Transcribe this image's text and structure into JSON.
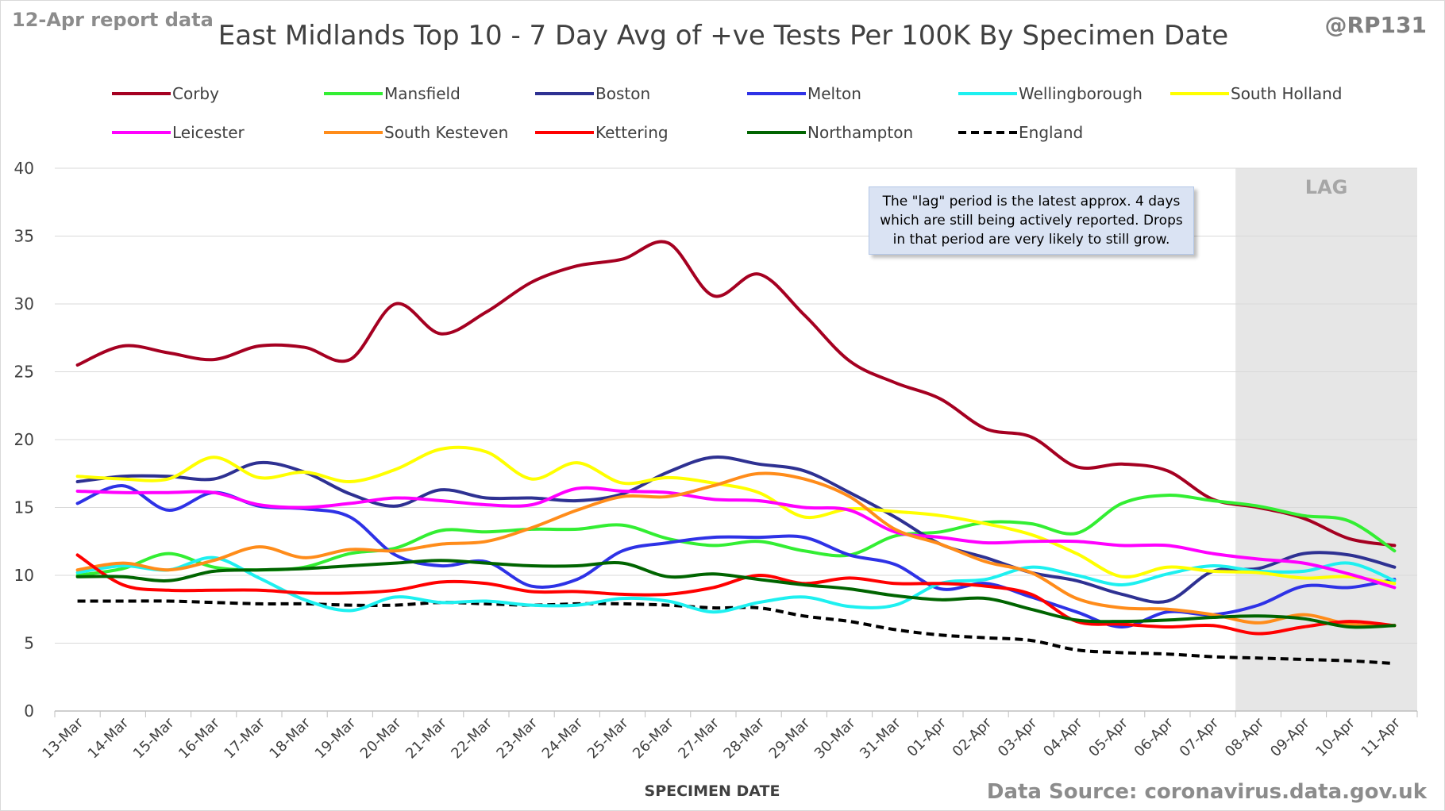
{
  "header": {
    "report_date": "12-Apr report data",
    "title": "East Midlands Top 10 - 7 Day Avg of +ve Tests Per 100K By Specimen Date",
    "handle": "@RP131"
  },
  "footer": {
    "source": "Data Source: coronavirus.data.gov.uk"
  },
  "annotation": {
    "note": "The \"lag\" period is the latest approx. 4 days which are still being actively reported. Drops in that period are very likely to still grow.",
    "lag_label": "LAG",
    "lag_start": "08-Apr",
    "lag_end": "11-Apr"
  },
  "chart_data": {
    "type": "line",
    "title": "East Midlands Top 10 - 7 Day Avg of +ve Tests Per 100K By Specimen Date",
    "xlabel": "SPECIMEN DATE",
    "ylabel": "",
    "ylim": [
      0,
      40
    ],
    "yticks": [
      0,
      5,
      10,
      15,
      20,
      25,
      30,
      35,
      40
    ],
    "grid": true,
    "legend_position": "top",
    "categories": [
      "13-Mar",
      "14-Mar",
      "15-Mar",
      "16-Mar",
      "17-Mar",
      "18-Mar",
      "19-Mar",
      "20-Mar",
      "21-Mar",
      "22-Mar",
      "23-Mar",
      "24-Mar",
      "25-Mar",
      "26-Mar",
      "27-Mar",
      "28-Mar",
      "29-Mar",
      "30-Mar",
      "31-Mar",
      "01-Apr",
      "02-Apr",
      "03-Apr",
      "04-Apr",
      "05-Apr",
      "06-Apr",
      "07-Apr",
      "08-Apr",
      "09-Apr",
      "10-Apr",
      "11-Apr"
    ],
    "series": [
      {
        "name": "Corby",
        "color": "#a50021",
        "dashed": false,
        "values": [
          25.5,
          26.9,
          26.4,
          25.9,
          26.9,
          26.8,
          25.9,
          30.0,
          27.8,
          29.4,
          31.6,
          32.8,
          33.3,
          34.5,
          30.6,
          32.2,
          29.2,
          25.8,
          24.2,
          23.0,
          20.8,
          20.2,
          18.0,
          18.2,
          17.7,
          15.6,
          15.0,
          14.2,
          12.7,
          12.2
        ]
      },
      {
        "name": "Mansfield",
        "color": "#33ee33",
        "dashed": false,
        "values": [
          10.0,
          10.5,
          11.6,
          10.6,
          10.4,
          10.6,
          11.6,
          12.0,
          13.3,
          13.2,
          13.4,
          13.4,
          13.7,
          12.7,
          12.2,
          12.5,
          11.8,
          11.5,
          12.9,
          13.2,
          13.9,
          13.8,
          13.1,
          15.3,
          15.9,
          15.5,
          15.1,
          14.4,
          14.0,
          11.8
        ]
      },
      {
        "name": "Boston",
        "color": "#2e3192",
        "dashed": false,
        "values": [
          16.9,
          17.3,
          17.3,
          17.1,
          18.3,
          17.6,
          16.0,
          15.1,
          16.3,
          15.7,
          15.7,
          15.5,
          16.0,
          17.6,
          18.7,
          18.2,
          17.7,
          16.1,
          14.3,
          12.3,
          11.3,
          10.2,
          9.6,
          8.6,
          8.1,
          10.3,
          10.5,
          11.6,
          11.5,
          10.6
        ]
      },
      {
        "name": "Melton",
        "color": "#2e32e6",
        "dashed": false,
        "values": [
          15.3,
          16.6,
          14.8,
          16.1,
          15.1,
          14.9,
          14.3,
          11.5,
          10.7,
          11.0,
          9.2,
          9.7,
          11.8,
          12.4,
          12.8,
          12.8,
          12.8,
          11.5,
          10.8,
          9.0,
          9.4,
          8.4,
          7.3,
          6.2,
          7.3,
          7.1,
          7.8,
          9.2,
          9.1,
          9.7
        ]
      },
      {
        "name": "Wellingborough",
        "color": "#1ef0f0",
        "dashed": false,
        "values": [
          10.2,
          10.7,
          10.4,
          11.3,
          9.8,
          8.2,
          7.4,
          8.4,
          8.0,
          8.1,
          7.8,
          7.8,
          8.3,
          8.1,
          7.3,
          8.0,
          8.4,
          7.7,
          7.8,
          9.4,
          9.7,
          10.6,
          10.0,
          9.3,
          10.1,
          10.7,
          10.3,
          10.3,
          10.9,
          9.6
        ]
      },
      {
        "name": "South Holland",
        "color": "#ffff00",
        "dashed": false,
        "values": [
          17.3,
          17.1,
          17.1,
          18.7,
          17.2,
          17.6,
          16.9,
          17.8,
          19.3,
          19.1,
          17.1,
          18.3,
          16.8,
          17.2,
          16.8,
          16.1,
          14.3,
          14.9,
          14.7,
          14.4,
          13.8,
          13.0,
          11.6,
          9.9,
          10.6,
          10.3,
          10.2,
          9.8,
          9.9,
          9.4
        ]
      },
      {
        "name": "Leicester",
        "color": "#ff00ff",
        "dashed": false,
        "values": [
          16.2,
          16.1,
          16.1,
          16.1,
          15.2,
          15.0,
          15.3,
          15.7,
          15.5,
          15.2,
          15.2,
          16.4,
          16.2,
          16.1,
          15.6,
          15.5,
          15.0,
          14.8,
          13.2,
          12.8,
          12.4,
          12.5,
          12.5,
          12.2,
          12.2,
          11.6,
          11.2,
          10.9,
          10.1,
          9.1
        ]
      },
      {
        "name": "South Kesteven",
        "color": "#ff8c1a",
        "dashed": false,
        "values": [
          10.4,
          10.9,
          10.4,
          11.1,
          12.1,
          11.3,
          11.9,
          11.8,
          12.3,
          12.5,
          13.5,
          14.8,
          15.8,
          15.8,
          16.6,
          17.5,
          17.1,
          15.8,
          13.4,
          12.3,
          11.0,
          10.2,
          8.3,
          7.6,
          7.5,
          7.1,
          6.5,
          7.1,
          6.4,
          6.3
        ]
      },
      {
        "name": "Kettering",
        "color": "#ff0000",
        "dashed": false,
        "values": [
          11.5,
          9.3,
          8.9,
          8.9,
          8.9,
          8.7,
          8.7,
          8.9,
          9.5,
          9.4,
          8.8,
          8.8,
          8.6,
          8.6,
          9.1,
          10.0,
          9.4,
          9.8,
          9.4,
          9.4,
          9.2,
          8.6,
          6.6,
          6.4,
          6.2,
          6.3,
          5.7,
          6.2,
          6.6,
          6.3
        ]
      },
      {
        "name": "Northampton",
        "color": "#006400",
        "dashed": false,
        "values": [
          9.9,
          9.9,
          9.6,
          10.3,
          10.4,
          10.5,
          10.7,
          10.9,
          11.1,
          10.9,
          10.7,
          10.7,
          10.9,
          9.9,
          10.1,
          9.7,
          9.3,
          9.0,
          8.5,
          8.2,
          8.3,
          7.5,
          6.7,
          6.6,
          6.7,
          6.9,
          7.0,
          6.8,
          6.2,
          6.3
        ]
      },
      {
        "name": "England",
        "color": "#000000",
        "dashed": true,
        "values": [
          8.1,
          8.1,
          8.1,
          8.0,
          7.9,
          7.9,
          7.8,
          7.8,
          8.0,
          7.9,
          7.8,
          7.9,
          7.9,
          7.8,
          7.6,
          7.6,
          7.0,
          6.6,
          6.0,
          5.6,
          5.4,
          5.2,
          4.5,
          4.3,
          4.2,
          4.0,
          3.9,
          3.8,
          3.7,
          3.5
        ]
      }
    ]
  }
}
